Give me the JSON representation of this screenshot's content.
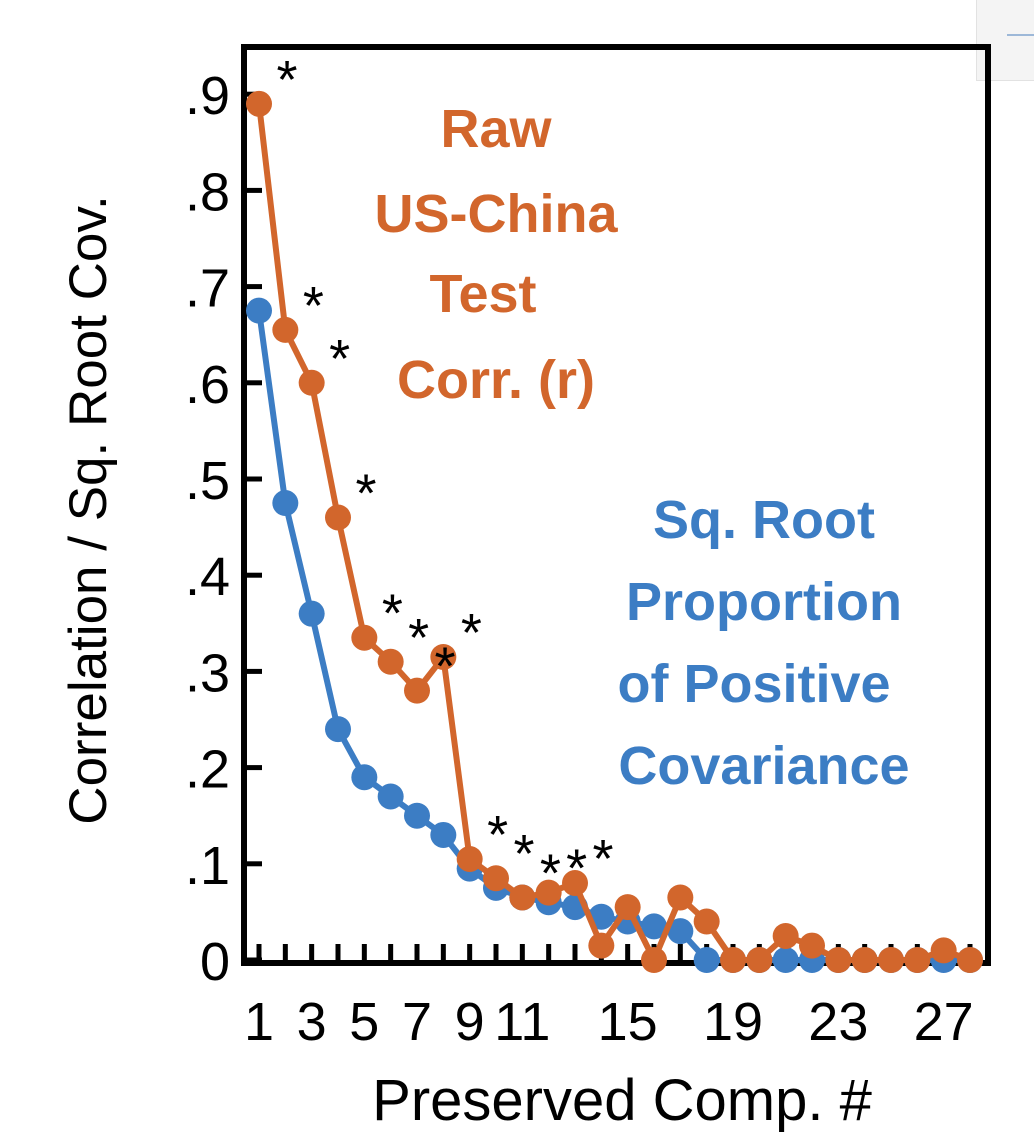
{
  "chart_data": {
    "type": "line",
    "xlabel": "Preserved Comp. #",
    "ylabel": "Correlation / Sq. Root Cov.",
    "xlim": [
      0.5,
      28.5
    ],
    "ylim": [
      0,
      0.95
    ],
    "x_ticks": [
      1,
      3,
      5,
      7,
      9,
      11,
      15,
      19,
      23,
      27
    ],
    "x_tick_labels": [
      "1",
      "3",
      "5",
      "7",
      "9",
      "11",
      "15",
      "19",
      "23",
      "27"
    ],
    "y_ticks": [
      0,
      0.1,
      0.2,
      0.3,
      0.4,
      0.5,
      0.6,
      0.7,
      0.8,
      0.9
    ],
    "y_tick_labels": [
      "0",
      ".1",
      ".2",
      ".3",
      ".4",
      ".5",
      ".6",
      ".7",
      ".8",
      ".9"
    ],
    "grid": false,
    "annotations": {
      "raw_label_lines": [
        "Raw",
        "US-China",
        "Test",
        "Corr. (r)"
      ],
      "cov_label_lines": [
        "Sq. Root",
        "Proportion",
        "of Positive",
        "Covariance"
      ]
    },
    "series": [
      {
        "name": "Raw US-China Test Corr. (r)",
        "color": "#d2662c",
        "x": [
          1,
          2,
          3,
          4,
          5,
          6,
          7,
          8,
          9,
          10,
          11,
          12,
          13,
          14,
          15,
          16,
          17,
          18,
          19,
          20,
          21,
          22,
          23,
          24,
          25,
          26,
          27,
          28
        ],
        "y": [
          0.89,
          0.655,
          0.6,
          0.46,
          0.335,
          0.31,
          0.28,
          0.315,
          0.105,
          0.085,
          0.065,
          0.07,
          0.08,
          0.015,
          0.055,
          0.0,
          0.065,
          0.04,
          0.0,
          0.0,
          0.025,
          0.015,
          0.0,
          0.0,
          0.0,
          0.0,
          0.01,
          0.0
        ],
        "significant": [
          1,
          2,
          3,
          4,
          5,
          6,
          7,
          8,
          9,
          10,
          11,
          12,
          13
        ]
      },
      {
        "name": "Sq. Root Proportion of Positive Covariance",
        "color": "#3c7dc4",
        "x": [
          1,
          2,
          3,
          4,
          5,
          6,
          7,
          8,
          9,
          10,
          11,
          12,
          13,
          14,
          15,
          16,
          17,
          18,
          19,
          20,
          21,
          22,
          23,
          24,
          25,
          26,
          27,
          28
        ],
        "y": [
          0.675,
          0.475,
          0.36,
          0.24,
          0.19,
          0.17,
          0.15,
          0.13,
          0.095,
          0.075,
          0.065,
          0.06,
          0.055,
          0.045,
          0.04,
          0.035,
          0.03,
          0.0,
          0.0,
          0.0,
          0.0,
          0.0,
          0.0,
          0.0,
          0.0,
          0.0,
          0.0,
          0.0
        ]
      }
    ],
    "significance_marker": "*"
  }
}
